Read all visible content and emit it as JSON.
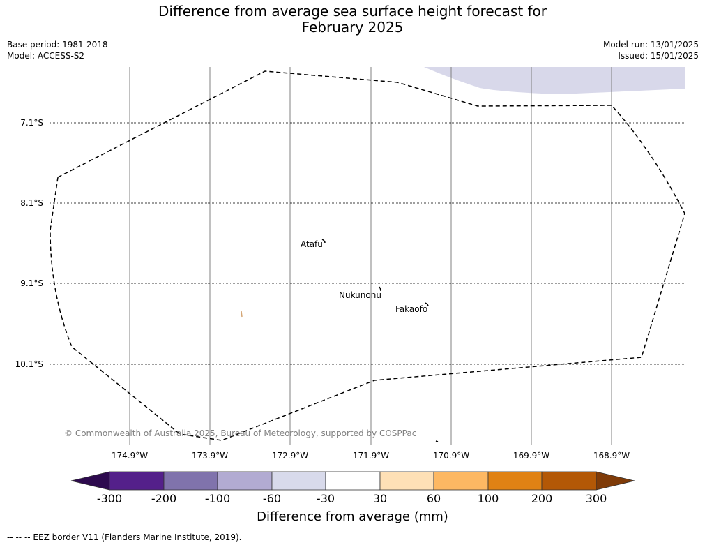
{
  "title": {
    "line1": "Difference from average sea surface height forecast for",
    "line2": "February 2025"
  },
  "meta": {
    "base_period": "Base period: 1981-2018",
    "model": "Model: ACCESS-S2",
    "model_run": "Model run: 13/01/2025",
    "issued": "Issued: 15/01/2025"
  },
  "map": {
    "latitude_labels": [
      "7.1°S",
      "8.1°S",
      "9.1°S",
      "10.1°S"
    ],
    "longitude_labels": [
      "174.9°W",
      "173.9°W",
      "172.9°W",
      "171.9°W",
      "170.9°W",
      "169.9°W",
      "168.9°W"
    ],
    "places": [
      "Atafu",
      "Nukunonu",
      "Fakaofo"
    ],
    "copyright": "© Commonwealth of Australia 2025, Bureau of Meteorology, supported by COSPPac",
    "colors": {
      "anomaly_fill": "#d8d8ea",
      "eez_border": "#000000",
      "gridline": "#808080",
      "small_island": "#d4a574"
    }
  },
  "colorbar": {
    "title": "Difference from average (mm)",
    "tick_labels": [
      "-300",
      "-200",
      "-100",
      "-60",
      "-30",
      "30",
      "60",
      "100",
      "200",
      "300"
    ],
    "colors": [
      "#2d0a4e",
      "#54208a",
      "#8073ac",
      "#b2abd2",
      "#d8daeb",
      "#ffffff",
      "#fee0b6",
      "#fdb863",
      "#e08214",
      "#b35806",
      "#7f3b08"
    ]
  },
  "legend": {
    "eez_text": "--  --  -- EEZ border V11 (Flanders Marine Institute, 2019)."
  }
}
